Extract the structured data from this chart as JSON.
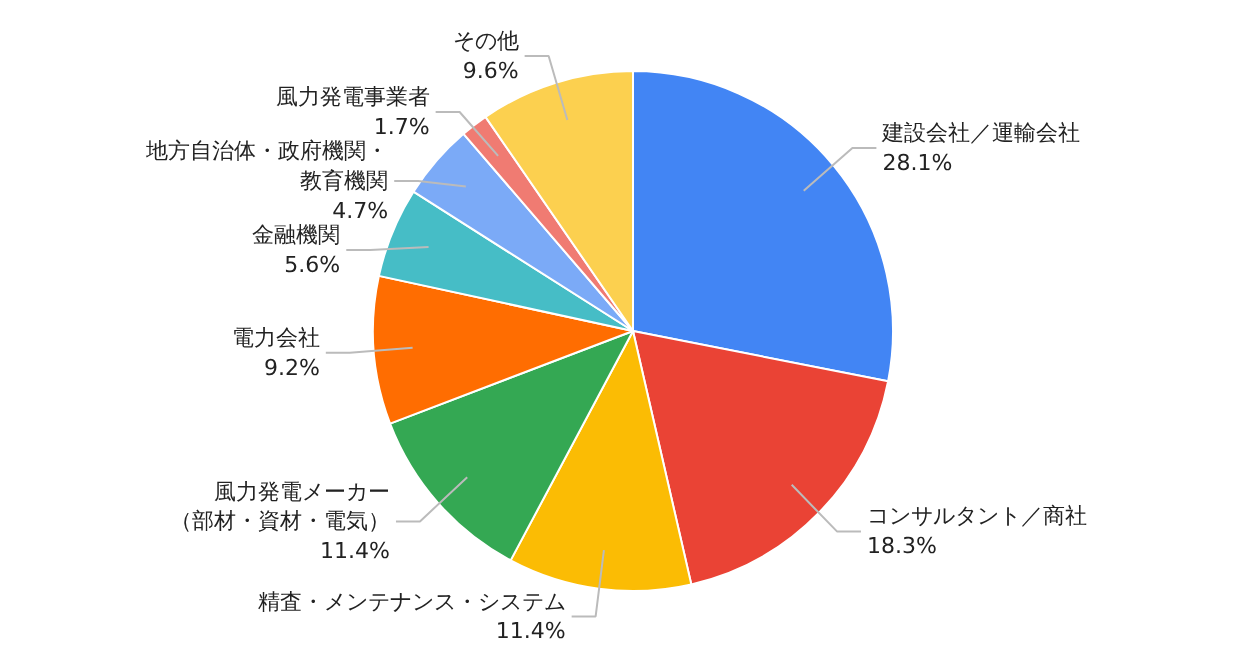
{
  "chart_data": {
    "type": "pie",
    "categories": [
      "建設会社／運輸会社",
      "コンサルタント／商社",
      "精査・メンテナンス・システム",
      "風力発電メーカー（部材・資材・電気）",
      "電力会社",
      "金融機関",
      "地方自治体・政府機関・教育機関",
      "風力発電事業者",
      "その他"
    ],
    "values": [
      28.1,
      18.3,
      11.4,
      11.4,
      9.2,
      5.6,
      4.7,
      1.7,
      9.6
    ],
    "colors": [
      "#4285f4",
      "#ea4335",
      "#fbbc04",
      "#34a853",
      "#ff6d01",
      "#46bdc6",
      "#7baaf7",
      "#f07b72",
      "#fcd04f"
    ],
    "value_labels": [
      "28.1%",
      "18.3%",
      "11.4%",
      "11.4%",
      "9.2%",
      "5.6%",
      "4.7%",
      "1.7%",
      "9.6%"
    ]
  }
}
